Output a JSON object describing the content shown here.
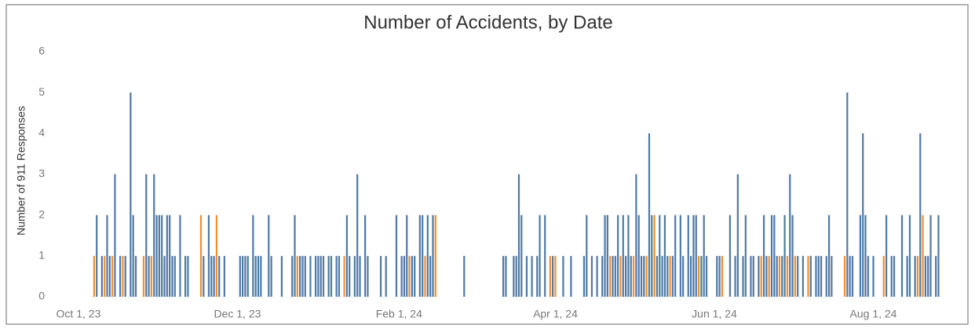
{
  "chart_data": {
    "type": "bar",
    "title": "Number of Accidents, by Date",
    "ylabel": "Number of 911 Responses",
    "xlim": [
      "2023-09-28",
      "2024-09-06"
    ],
    "xticks": [
      {
        "value": "2023-10-01",
        "label": "Oct 1, 23"
      },
      {
        "value": "2023-12-01",
        "label": "Dec 1, 23"
      },
      {
        "value": "2024-02-01",
        "label": "Feb 1, 24"
      },
      {
        "value": "2024-04-01",
        "label": "Apr 1, 24"
      },
      {
        "value": "2024-06-01",
        "label": "Jun 1, 24"
      },
      {
        "value": "2024-08-01",
        "label": "Aug 1, 24"
      }
    ],
    "ylim": [
      0,
      6
    ],
    "yticks": [
      0,
      1,
      2,
      3,
      4,
      5,
      6
    ],
    "grid": false,
    "series": [
      {
        "color": "#4e79a7",
        "x": [
          "2023-10-08",
          "2023-10-10",
          "2023-10-12",
          "2023-10-13",
          "2023-10-15",
          "2023-10-17",
          "2023-10-19",
          "2023-10-21",
          "2023-10-22",
          "2023-10-23",
          "2023-10-27",
          "2023-10-28",
          "2023-10-30",
          "2023-10-31",
          "2023-11-01",
          "2023-11-02",
          "2023-11-03",
          "2023-11-04",
          "2023-11-05",
          "2023-11-06",
          "2023-11-07",
          "2023-11-09",
          "2023-11-11",
          "2023-11-12",
          "2023-11-18",
          "2023-11-20",
          "2023-11-21",
          "2023-11-22",
          "2023-11-24",
          "2023-11-26",
          "2023-12-02",
          "2023-12-03",
          "2023-12-04",
          "2023-12-05",
          "2023-12-07",
          "2023-12-08",
          "2023-12-09",
          "2023-12-10",
          "2023-12-13",
          "2023-12-14",
          "2023-12-18",
          "2023-12-22",
          "2023-12-23",
          "2023-12-25",
          "2023-12-26",
          "2023-12-27",
          "2023-12-29",
          "2023-12-31",
          "2024-01-01",
          "2024-01-02",
          "2024-01-03",
          "2024-01-05",
          "2024-01-06",
          "2024-01-08",
          "2024-01-09",
          "2024-01-12",
          "2024-01-13",
          "2024-01-15",
          "2024-01-16",
          "2024-01-17",
          "2024-01-19",
          "2024-01-20",
          "2024-01-25",
          "2024-01-27",
          "2024-01-31",
          "2024-02-02",
          "2024-02-03",
          "2024-02-04",
          "2024-02-06",
          "2024-02-07",
          "2024-02-09",
          "2024-02-10",
          "2024-02-12",
          "2024-02-13",
          "2024-02-14",
          "2024-02-26",
          "2024-03-12",
          "2024-03-13",
          "2024-03-16",
          "2024-03-17",
          "2024-03-18",
          "2024-03-19",
          "2024-03-21",
          "2024-03-23",
          "2024-03-25",
          "2024-03-26",
          "2024-03-28",
          "2024-03-31",
          "2024-04-04",
          "2024-04-07",
          "2024-04-12",
          "2024-04-13",
          "2024-04-15",
          "2024-04-17",
          "2024-04-19",
          "2024-04-20",
          "2024-04-21",
          "2024-04-23",
          "2024-04-24",
          "2024-04-25",
          "2024-04-27",
          "2024-04-28",
          "2024-04-29",
          "2024-04-30",
          "2024-05-02",
          "2024-05-03",
          "2024-05-04",
          "2024-05-05",
          "2024-05-07",
          "2024-05-08",
          "2024-05-10",
          "2024-05-11",
          "2024-05-12",
          "2024-05-13",
          "2024-05-14",
          "2024-05-16",
          "2024-05-17",
          "2024-05-19",
          "2024-05-20",
          "2024-05-22",
          "2024-05-23",
          "2024-05-24",
          "2024-05-25",
          "2024-05-27",
          "2024-05-28",
          "2024-05-29",
          "2024-06-02",
          "2024-06-03",
          "2024-06-07",
          "2024-06-09",
          "2024-06-10",
          "2024-06-12",
          "2024-06-13",
          "2024-06-15",
          "2024-06-16",
          "2024-06-18",
          "2024-06-20",
          "2024-06-21",
          "2024-06-23",
          "2024-06-24",
          "2024-06-25",
          "2024-06-27",
          "2024-06-28",
          "2024-06-30",
          "2024-07-01",
          "2024-07-03",
          "2024-07-05",
          "2024-07-08",
          "2024-07-10",
          "2024-07-11",
          "2024-07-12",
          "2024-07-14",
          "2024-07-15",
          "2024-07-16",
          "2024-07-22",
          "2024-07-23",
          "2024-07-24",
          "2024-07-27",
          "2024-07-28",
          "2024-07-29",
          "2024-07-30",
          "2024-08-01",
          "2024-08-06",
          "2024-08-08",
          "2024-08-09",
          "2024-08-12",
          "2024-08-14",
          "2024-08-15",
          "2024-08-17",
          "2024-08-19",
          "2024-08-21",
          "2024-08-22",
          "2024-08-23",
          "2024-08-25",
          "2024-08-26"
        ],
        "values": [
          2,
          1,
          2,
          1,
          3,
          1,
          1,
          5,
          2,
          1,
          3,
          1,
          3,
          2,
          2,
          2,
          1,
          2,
          2,
          1,
          1,
          2,
          1,
          1,
          1,
          2,
          1,
          1,
          1,
          1,
          1,
          1,
          1,
          1,
          2,
          1,
          1,
          1,
          2,
          1,
          1,
          1,
          2,
          1,
          1,
          1,
          1,
          1,
          1,
          1,
          1,
          1,
          1,
          1,
          1,
          2,
          1,
          1,
          3,
          1,
          2,
          1,
          1,
          1,
          2,
          1,
          1,
          2,
          1,
          1,
          2,
          2,
          2,
          1,
          2,
          1,
          1,
          1,
          1,
          1,
          3,
          2,
          1,
          1,
          1,
          2,
          2,
          1,
          1,
          1,
          1,
          2,
          1,
          1,
          1,
          2,
          2,
          1,
          1,
          2,
          2,
          1,
          2,
          1,
          3,
          2,
          1,
          1,
          4,
          2,
          1,
          2,
          1,
          2,
          1,
          1,
          2,
          2,
          1,
          2,
          1,
          2,
          2,
          1,
          2,
          1,
          1,
          1,
          2,
          1,
          3,
          1,
          2,
          1,
          1,
          1,
          2,
          1,
          2,
          2,
          1,
          1,
          2,
          3,
          2,
          1,
          1,
          1,
          1,
          1,
          1,
          1,
          2,
          1,
          5,
          1,
          1,
          2,
          4,
          2,
          1,
          1,
          2,
          1,
          1,
          2,
          1,
          2,
          1,
          4,
          1,
          1,
          2,
          1,
          2
        ]
      },
      {
        "color": "#f28e2b",
        "x": [
          "2023-10-07",
          "2023-10-11",
          "2023-10-14",
          "2023-10-18",
          "2023-10-26",
          "2023-10-29",
          "2023-11-17",
          "2023-11-23",
          "2023-12-24",
          "2024-01-11",
          "2024-02-05",
          "2024-02-11",
          "2024-02-15",
          "2024-03-30",
          "2024-04-01",
          "2024-04-22",
          "2024-04-26",
          "2024-05-01",
          "2024-05-06",
          "2024-05-09",
          "2024-05-15",
          "2024-05-26",
          "2024-06-04",
          "2024-06-19",
          "2024-06-22",
          "2024-06-26",
          "2024-06-29",
          "2024-07-02",
          "2024-07-07",
          "2024-07-21",
          "2024-08-05",
          "2024-08-18",
          "2024-08-20"
        ],
        "values": [
          1,
          1,
          1,
          1,
          1,
          1,
          2,
          2,
          1,
          1,
          1,
          1,
          2,
          1,
          1,
          1,
          1,
          1,
          1,
          2,
          1,
          1,
          1,
          1,
          1,
          1,
          1,
          1,
          1,
          1,
          1,
          1,
          2
        ]
      }
    ]
  }
}
